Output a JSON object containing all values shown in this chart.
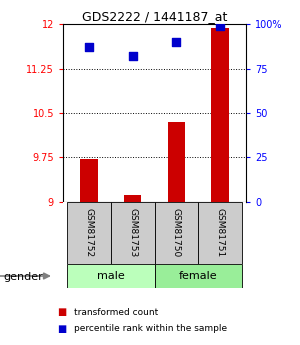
{
  "title": "GDS2222 / 1441187_at",
  "samples": [
    "GSM81752",
    "GSM81753",
    "GSM81750",
    "GSM81751"
  ],
  "red_values": [
    9.72,
    9.12,
    10.35,
    11.93
  ],
  "blue_values": [
    87,
    82,
    90,
    99
  ],
  "ylim_left": [
    9.0,
    12.0
  ],
  "ylim_right": [
    0,
    100
  ],
  "yticks_left": [
    9.0,
    9.75,
    10.5,
    11.25,
    12.0
  ],
  "ytick_labels_left": [
    "9",
    "9.75",
    "10.5",
    "11.25",
    "12"
  ],
  "yticks_right": [
    0,
    25,
    50,
    75,
    100
  ],
  "ytick_labels_right": [
    "0",
    "25",
    "50",
    "75",
    "100%"
  ],
  "hlines": [
    9.75,
    10.5,
    11.25
  ],
  "bar_width": 0.4,
  "bar_color": "#cc0000",
  "dot_color": "#0000cc",
  "dot_size": 30,
  "legend_items": [
    {
      "color": "#cc0000",
      "label": "transformed count"
    },
    {
      "color": "#0000cc",
      "label": "percentile rank within the sample"
    }
  ],
  "gender_label": "gender",
  "male_color": "#bbffbb",
  "female_color": "#99ee99",
  "sample_box_color": "#cccccc",
  "x_positions": [
    1,
    2,
    3,
    4
  ],
  "xlim": [
    0.4,
    4.6
  ]
}
